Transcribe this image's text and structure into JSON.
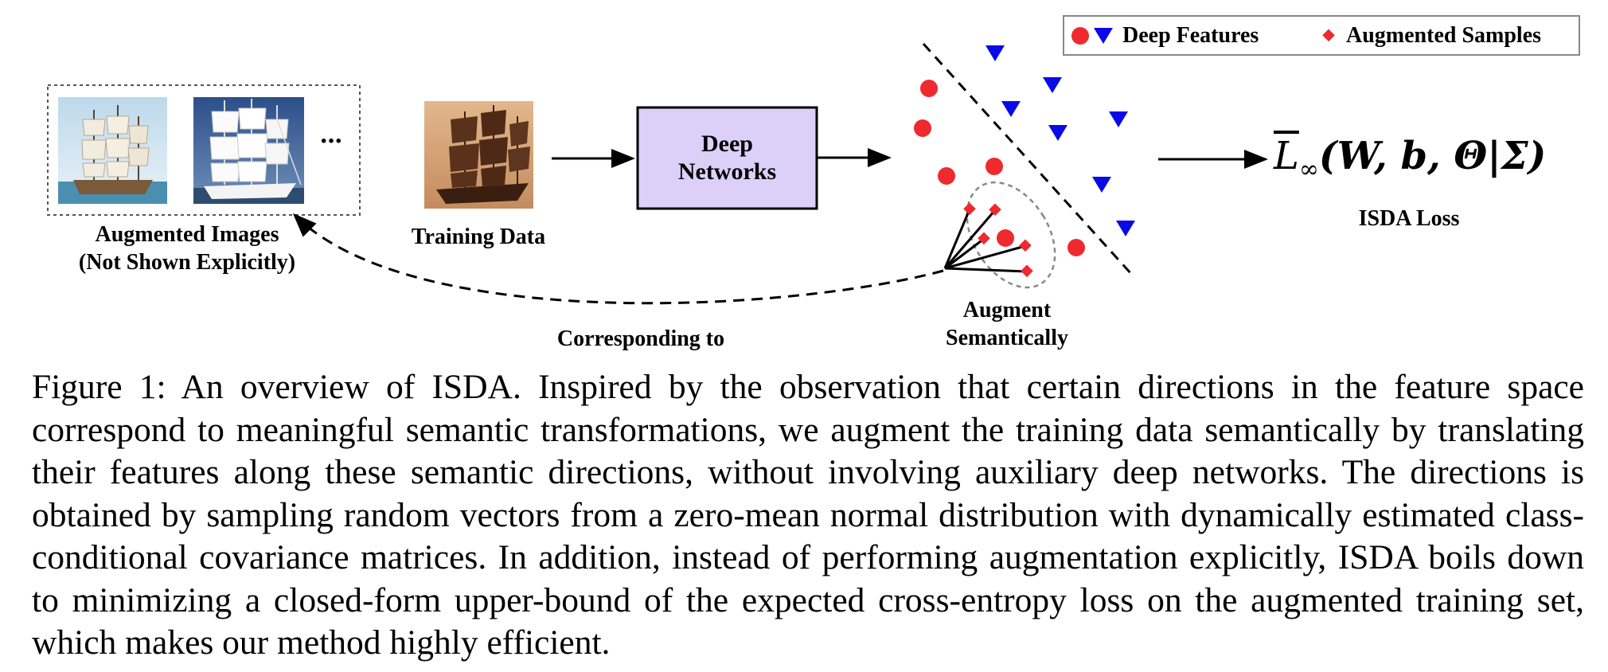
{
  "legend": {
    "deep_features": "Deep Features",
    "augmented_samples": "Augmented Samples",
    "colors": {
      "feature": "#ee2a2f",
      "class_b": "#0a0ae6",
      "augmented": "#ee2a2f"
    }
  },
  "labels": {
    "augmented_images_line1": "Augmented Images",
    "augmented_images_line2": "(Not Shown Explicitly)",
    "ellipsis": "···",
    "training_data": "Training Data",
    "network_line1": "Deep",
    "network_line2": "Networks",
    "augment_line1": "Augment",
    "augment_line2": "Semantically",
    "corresponding": "Corresponding to",
    "loss_caption": "ISDA Loss"
  },
  "formula": {
    "symbol": "L",
    "subscript": "∞",
    "args": "(W, b, Θ|Σ)"
  },
  "network_box_color": "#dcd0f8",
  "caption": "Figure 1: An overview of ISDA. Inspired by the observation that certain directions in the feature space correspond to meaningful semantic transformations, we augment the training data semantically by translating their features along these semantic directions, without involving auxiliary deep networks. The directions is obtained by sampling random vectors from a zero-mean normal distribution with dynamically estimated class-conditional covariance matrices. In addition, instead of performing augmentation explicitly, ISDA boils down to minimizing a closed-form upper-bound of the expected cross-entropy loss on the augmented training set, which makes our method highly efficient."
}
